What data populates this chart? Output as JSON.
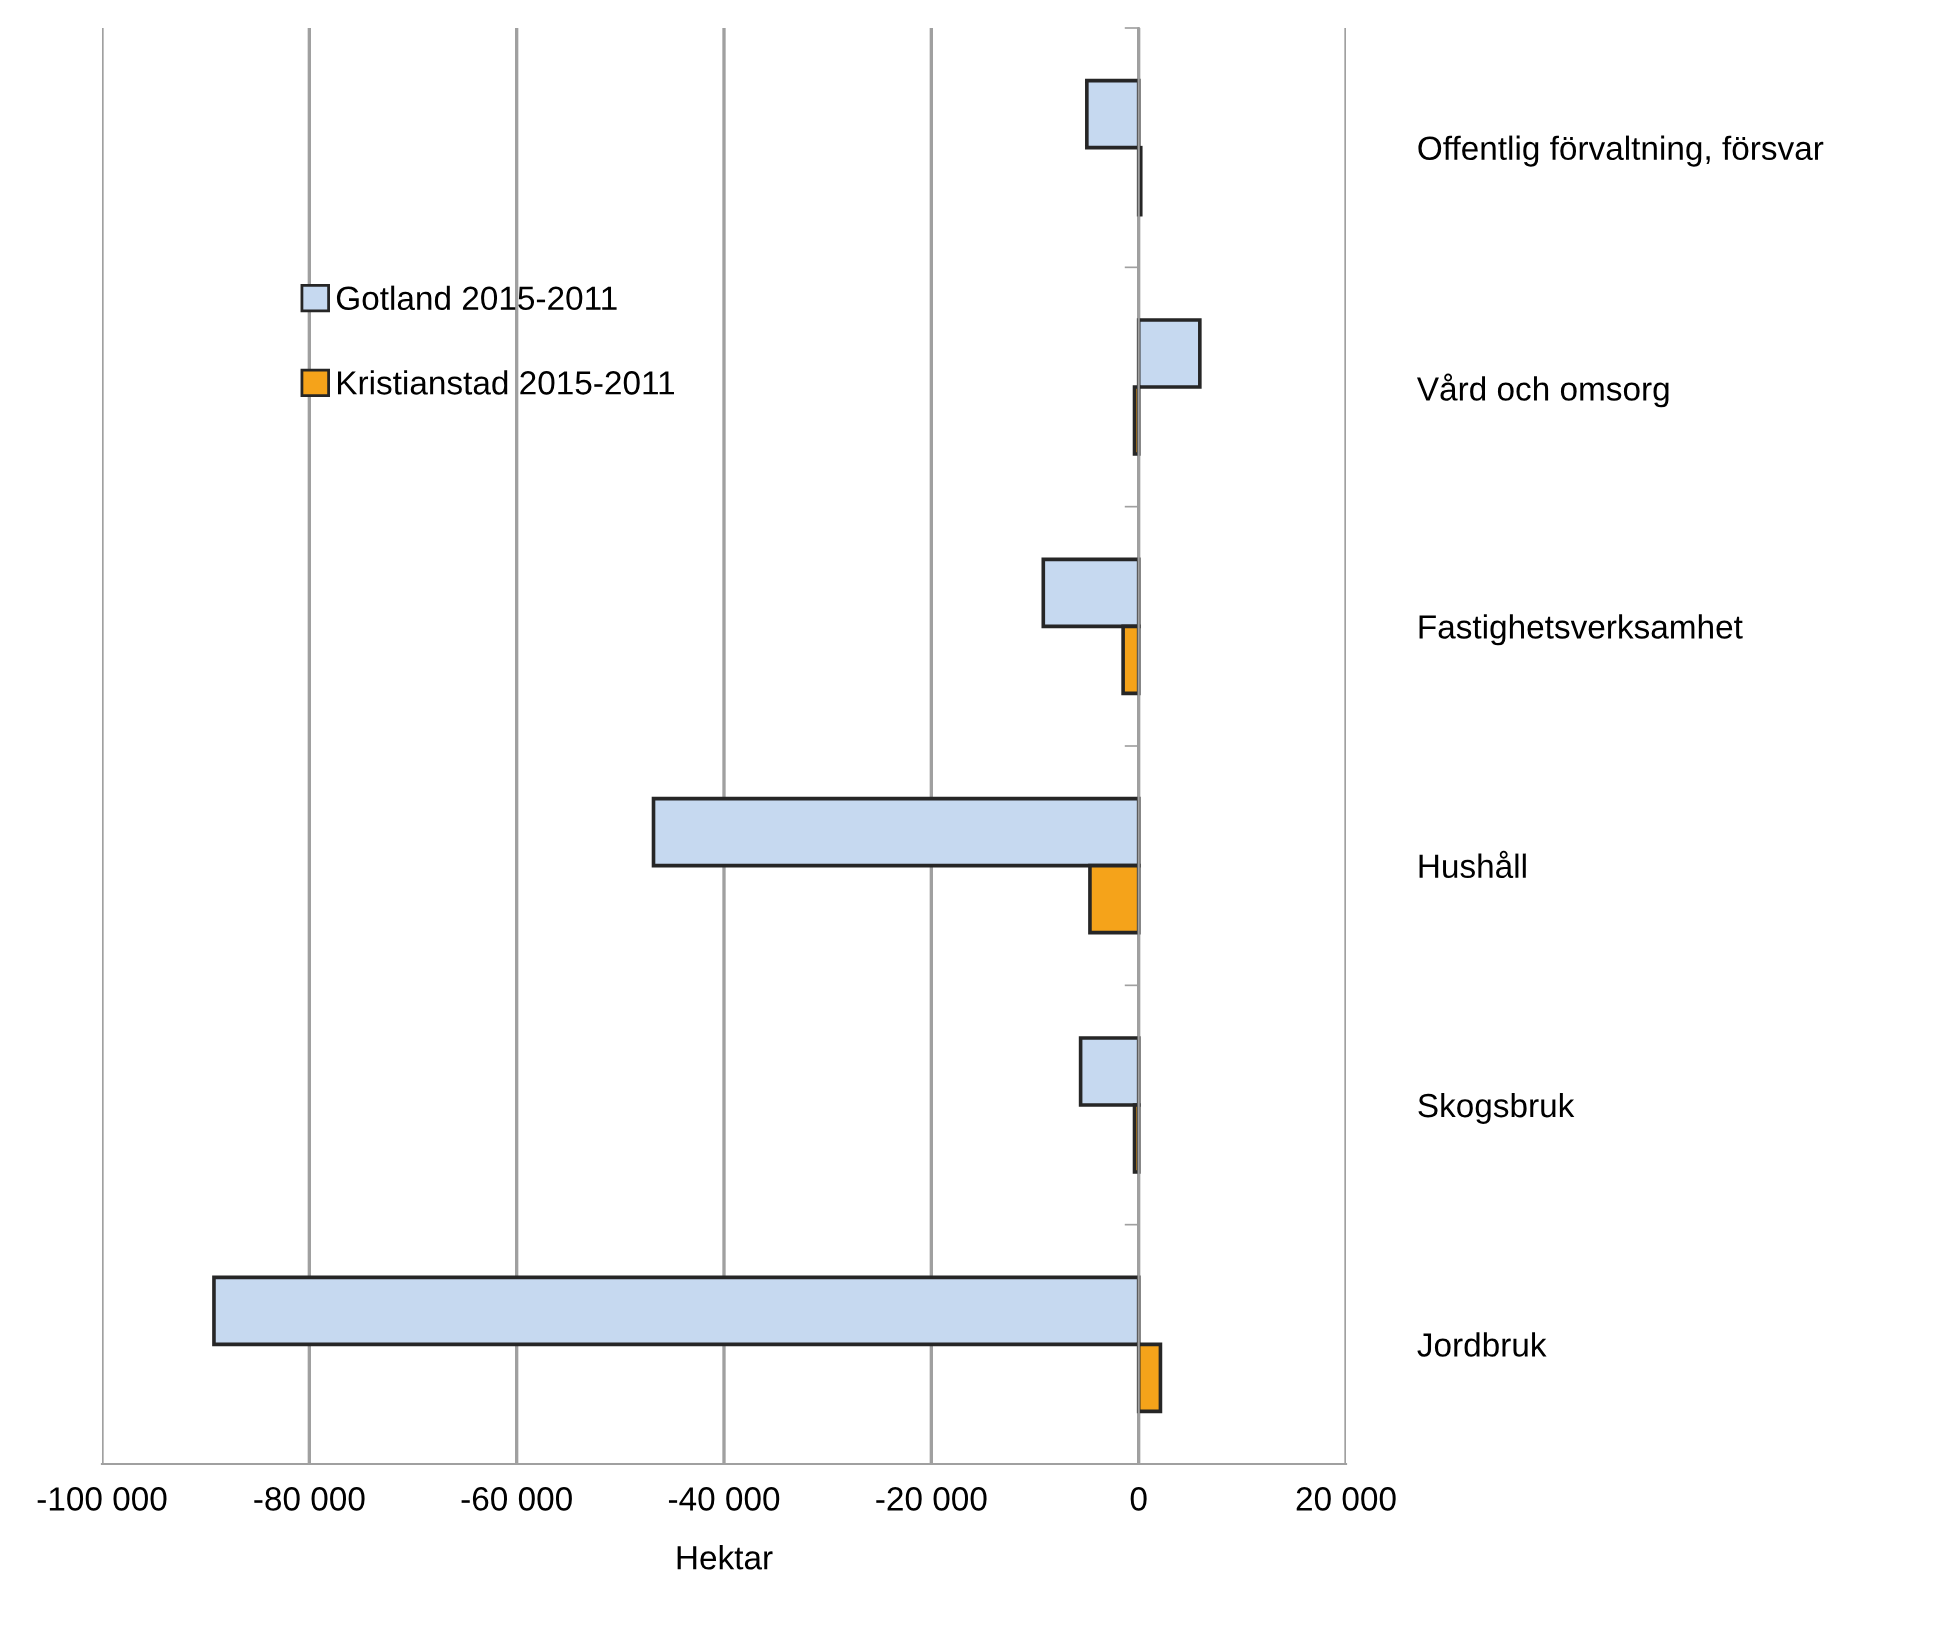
{
  "chart_data": {
    "type": "bar",
    "orientation": "horizontal",
    "xlabel": "Hektar",
    "categories": [
      "Offentlig förvaltning, försvar",
      "Vård och omsorg",
      "Fastighetsverksamhet",
      "Hushåll",
      "Skogsbruk",
      "Jordbruk"
    ],
    "series": [
      {
        "name": "Gotland 2015-2011",
        "color": "#c6d9f0",
        "values": [
          -5000,
          5900,
          -9200,
          -46800,
          -5600,
          -89200
        ]
      },
      {
        "name": "Kristianstad 2015-2011",
        "color": "#f5a31a",
        "values": [
          200,
          -400,
          -1500,
          -4700,
          -400,
          2100
        ]
      }
    ],
    "xlim": [
      -100000,
      20000
    ],
    "xticks": [
      {
        "value": -100000,
        "label": "-100 000"
      },
      {
        "value": -80000,
        "label": "-80 000"
      },
      {
        "value": -60000,
        "label": "-60 000"
      },
      {
        "value": -40000,
        "label": "-40 000"
      },
      {
        "value": -20000,
        "label": "-20 000"
      },
      0,
      {
        "value": 20000,
        "label": "20 000"
      }
    ],
    "grid": "x",
    "legend": "top left"
  }
}
